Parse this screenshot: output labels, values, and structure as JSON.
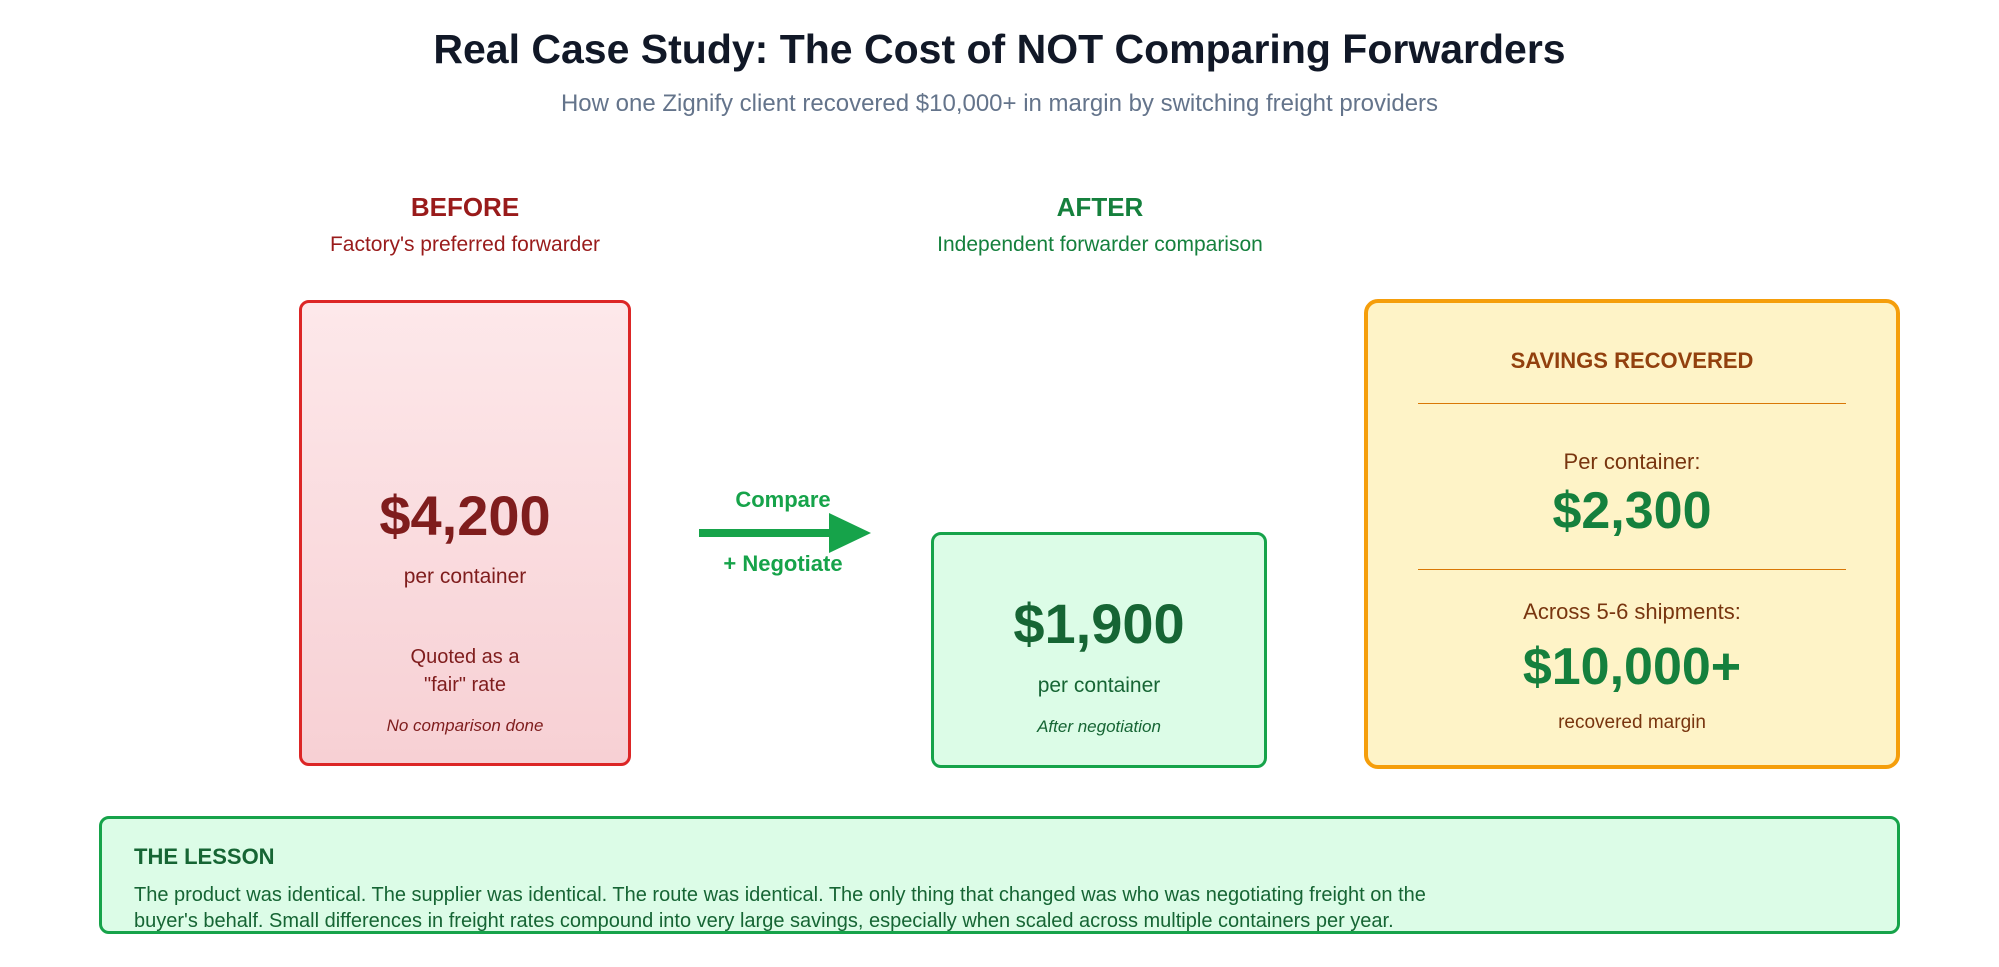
{
  "header": {
    "title": "Real Case Study: The Cost of NOT Comparing Forwarders",
    "subtitle": "How one Zignify client recovered $10,000+ in margin by switching freight providers"
  },
  "before": {
    "heading": "BEFORE",
    "subheading": "Factory's preferred forwarder",
    "price": "$4,200",
    "unit": "per container",
    "quoted_line1": "Quoted as a",
    "quoted_line2": "\"fair\" rate",
    "note": "No comparison done"
  },
  "arrow": {
    "top_label": "Compare",
    "bottom_label": "+ Negotiate"
  },
  "after": {
    "heading": "AFTER",
    "subheading": "Independent forwarder comparison",
    "price": "$1,900",
    "unit": "per container",
    "note": "After negotiation"
  },
  "savings": {
    "title": "SAVINGS RECOVERED",
    "per_container_label": "Per container:",
    "per_container_value": "$2,300",
    "across_label": "Across 5-6 shipments:",
    "across_value": "$10,000+",
    "recovered_label": "recovered margin"
  },
  "lesson": {
    "title": "THE LESSON",
    "line1": "The product was identical. The supplier was identical. The route was identical. The only thing that changed was who was negotiating freight on the",
    "line2": "buyer's behalf. Small differences in freight rates compound into very large savings, especially when scaled across multiple containers per year."
  },
  "colors": {
    "before_accent": "#dc2626",
    "after_accent": "#16a34a",
    "savings_accent": "#f59e0b"
  }
}
